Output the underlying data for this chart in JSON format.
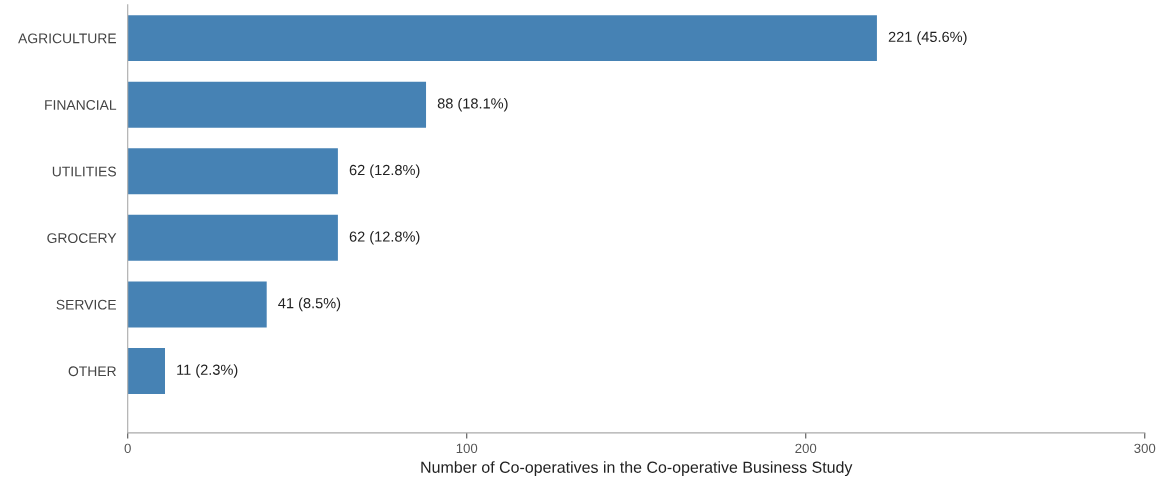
{
  "chart_data": {
    "type": "bar",
    "orientation": "horizontal",
    "xlabel": "Number of Co-operatives in the Co-operative Business Study",
    "categories": [
      "AGRICULTURE",
      "FINANCIAL",
      "UTILITIES",
      "GROCERY",
      "SERVICE",
      "OTHER"
    ],
    "values": [
      221,
      88,
      62,
      62,
      41,
      11
    ],
    "value_labels": [
      "221 (45.6%)",
      "88 (18.1%)",
      "62 (12.8%)",
      "62 (12.8%)",
      "41 (8.5%)",
      "11 (2.3%)"
    ],
    "color": "#4682b4",
    "xlim": [
      0,
      300
    ],
    "xticks": [
      0,
      100,
      200,
      300
    ],
    "grid": false,
    "legend": false
  }
}
